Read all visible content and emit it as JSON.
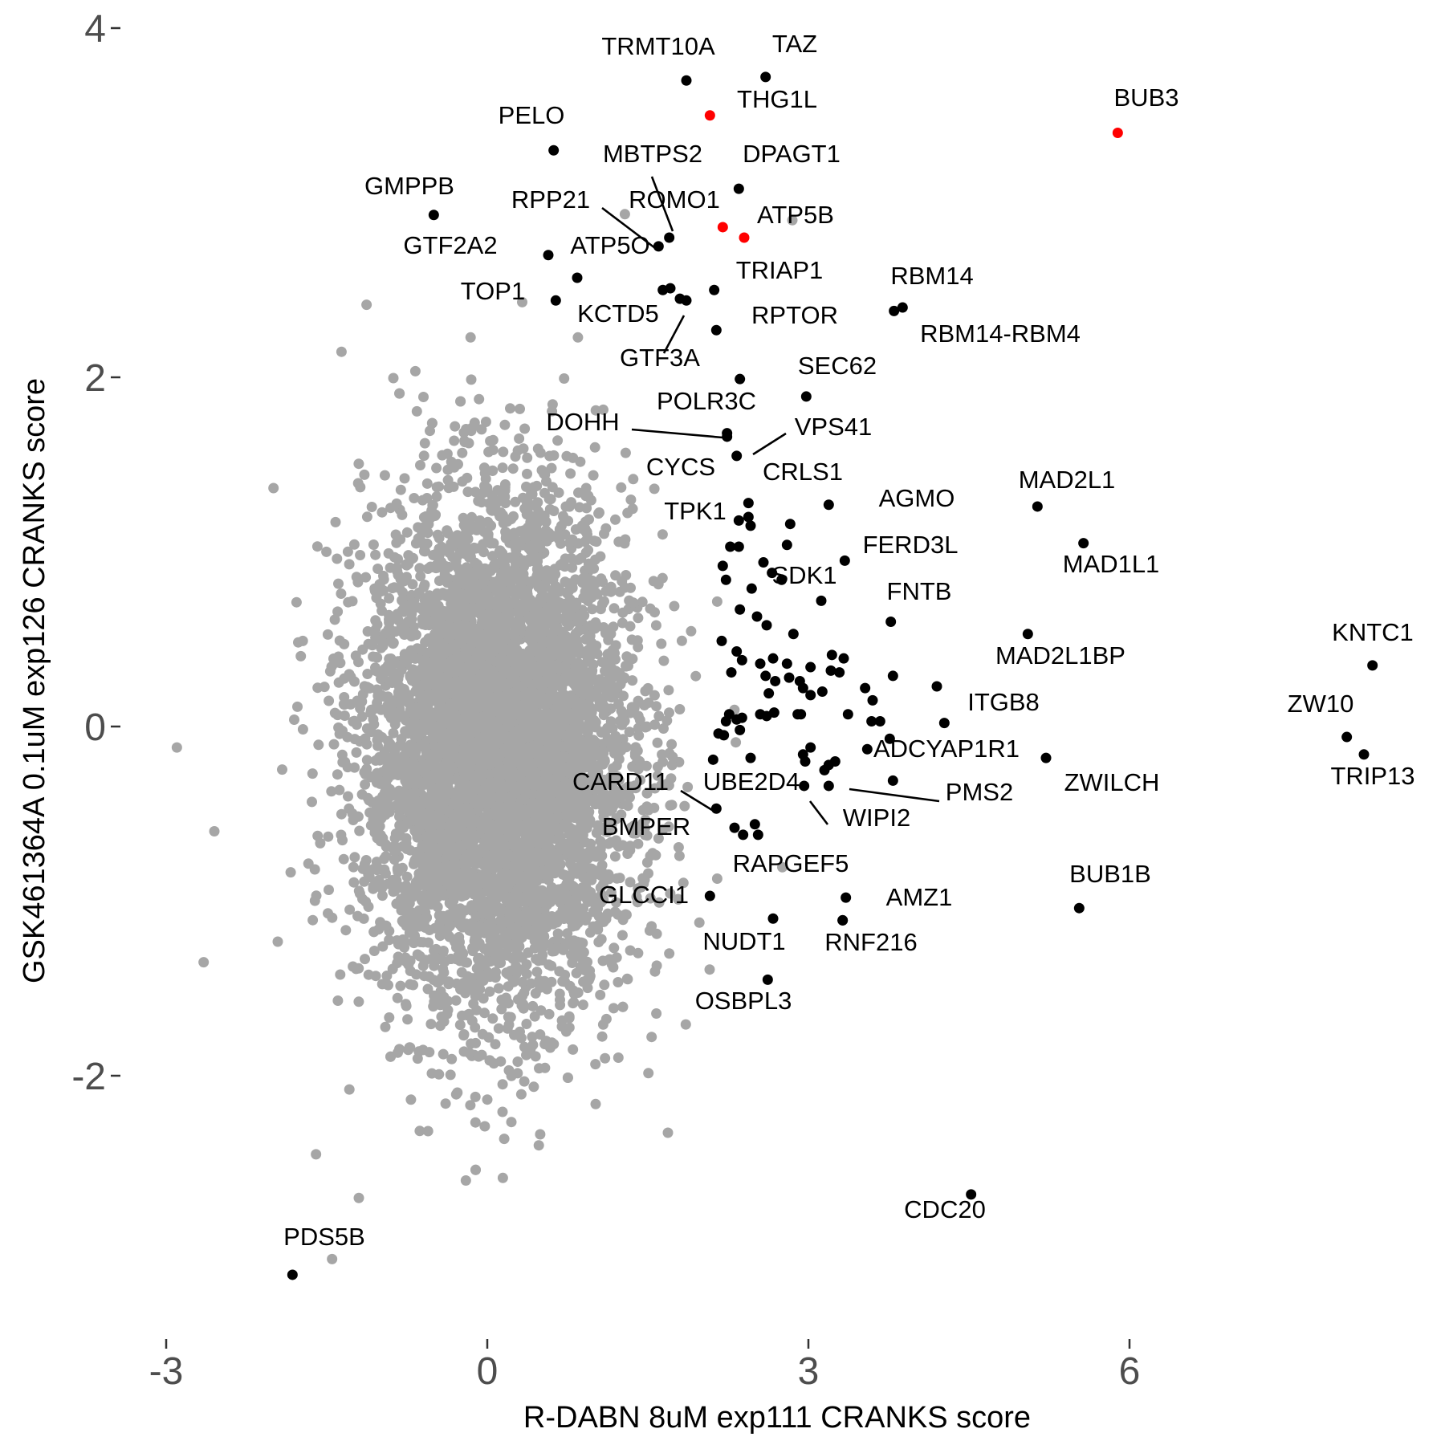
{
  "chart_data": {
    "type": "scatter",
    "xlabel": "R-DABN 8uM exp111 CRANKS score",
    "ylabel": "GSK461364A 0.1uM exp126 CRANKS score",
    "xlim": [
      -3.2,
      8.8
    ],
    "ylim": [
      -3.35,
      4.2
    ],
    "x_ticks": [
      -3,
      0,
      3,
      6
    ],
    "y_ticks": [
      -2,
      0,
      2,
      4
    ],
    "x_tick_labels": [
      "-3",
      "0",
      "3",
      "6"
    ],
    "y_tick_labels": [
      "-2",
      "0",
      "2",
      "4"
    ],
    "grid": false,
    "legend": "none",
    "colors": {
      "background_points": "#a6a6a6",
      "highlight": "#000000",
      "special": "#ff0000"
    },
    "background_cloud": {
      "description_count": 18000,
      "center": [
        0.1,
        -0.15
      ],
      "spread": [
        0.62,
        0.72
      ],
      "extra_points": [
        [
          -2.9,
          -0.12
        ],
        [
          -2.65,
          -1.35
        ],
        [
          -2.55,
          -0.6
        ],
        [
          -1.6,
          -2.45
        ],
        [
          -1.45,
          -3.05
        ],
        [
          -1.2,
          -2.7
        ],
        [
          -0.2,
          -2.6
        ],
        [
          2.85,
          2.9
        ],
        [
          1.7,
          -1.3
        ],
        [
          1.1,
          -1.9
        ],
        [
          0.8,
          -1.85
        ]
      ]
    },
    "highlight_points": [
      {
        "gene": "TRMT10A",
        "x": 1.86,
        "y": 3.7,
        "color": "black"
      },
      {
        "gene": "TAZ",
        "x": 2.6,
        "y": 3.72,
        "color": "black"
      },
      {
        "gene": "THG1L",
        "x": 2.08,
        "y": 3.5,
        "color": "red"
      },
      {
        "gene": "BUB3",
        "x": 5.89,
        "y": 3.4,
        "color": "red"
      },
      {
        "gene": "PELO",
        "x": 0.62,
        "y": 3.3,
        "color": "black"
      },
      {
        "gene": "DPAGT1",
        "x": 2.35,
        "y": 3.08,
        "color": "black"
      },
      {
        "gene": "MBTPS2",
        "x": 1.7,
        "y": 2.8,
        "color": "black"
      },
      {
        "gene": "GMPPB",
        "x": -0.5,
        "y": 2.93,
        "color": "black"
      },
      {
        "gene": "RPP21",
        "x": 1.6,
        "y": 2.75,
        "color": "black"
      },
      {
        "gene": "ROMO1",
        "x": 2.2,
        "y": 2.86,
        "color": "red"
      },
      {
        "gene": "ATP5B",
        "x": 2.4,
        "y": 2.8,
        "color": "red"
      },
      {
        "gene": "GTF2A2",
        "x": 0.57,
        "y": 2.7,
        "color": "black"
      },
      {
        "gene": "ATP5O",
        "x": 0.84,
        "y": 2.57,
        "color": "black"
      },
      {
        "gene": "TRIAP1",
        "x": 2.12,
        "y": 2.5,
        "color": "black"
      },
      {
        "gene": "TOP1",
        "x": 0.64,
        "y": 2.44,
        "color": "black"
      },
      {
        "gene": "RBM14",
        "x": 3.88,
        "y": 2.4,
        "color": "black"
      },
      {
        "gene": "RBM14-RBM4",
        "x": 3.8,
        "y": 2.38,
        "color": "black"
      },
      {
        "gene": "KCTD5",
        "x": 1.64,
        "y": 2.5,
        "color": "black"
      },
      {
        "gene": "GTF3A",
        "x": 1.8,
        "y": 2.45,
        "color": "black"
      },
      {
        "gene": "RPTOR",
        "x": 2.14,
        "y": 2.27,
        "color": "black"
      },
      {
        "gene": "SEC62",
        "x": 2.36,
        "y": 1.99,
        "color": "black"
      },
      {
        "gene": "VPS41",
        "x": 2.98,
        "y": 1.89,
        "color": "black"
      },
      {
        "gene": "POLR3C",
        "x": 2.24,
        "y": 1.68,
        "color": "black"
      },
      {
        "gene": "DOHH",
        "x": 2.24,
        "y": 1.66,
        "color": "black"
      },
      {
        "gene": "CYCS",
        "x": 2.33,
        "y": 1.55,
        "color": "black"
      },
      {
        "gene": "CRLS1",
        "x": 2.44,
        "y": 1.28,
        "color": "black"
      },
      {
        "gene": "AGMO",
        "x": 3.19,
        "y": 1.27,
        "color": "black"
      },
      {
        "gene": "MAD2L1",
        "x": 5.14,
        "y": 1.26,
        "color": "black"
      },
      {
        "gene": "TPK1",
        "x": 2.44,
        "y": 1.2,
        "color": "black"
      },
      {
        "gene": "MAD1L1",
        "x": 5.57,
        "y": 1.05,
        "color": "black"
      },
      {
        "gene": "FERD3L",
        "x": 3.34,
        "y": 0.95,
        "color": "black"
      },
      {
        "gene": "SDK1",
        "x": 2.8,
        "y": 1.04,
        "color": "black"
      },
      {
        "gene": "FNTB",
        "x": 3.77,
        "y": 0.6,
        "color": "black"
      },
      {
        "gene": "MAD2L1BP",
        "x": 5.05,
        "y": 0.53,
        "color": "black"
      },
      {
        "gene": "KNTC1",
        "x": 8.27,
        "y": 0.35,
        "color": "black"
      },
      {
        "gene": "ITGB8",
        "x": 4.2,
        "y": 0.23,
        "color": "black"
      },
      {
        "gene": "ZW10",
        "x": 8.03,
        "y": -0.06,
        "color": "black"
      },
      {
        "gene": "TRIP13",
        "x": 8.19,
        "y": -0.16,
        "color": "black"
      },
      {
        "gene": "ADCYAP1R1",
        "x": 4.27,
        "y": 0.02,
        "color": "black"
      },
      {
        "gene": "ZWILCH",
        "x": 5.22,
        "y": -0.18,
        "color": "black"
      },
      {
        "gene": "PMS2",
        "x": 3.79,
        "y": -0.31,
        "color": "black"
      },
      {
        "gene": "CARD11",
        "x": 2.14,
        "y": -0.47,
        "color": "black"
      },
      {
        "gene": "UBE2D4",
        "x": 2.96,
        "y": -0.34,
        "color": "black"
      },
      {
        "gene": "WIPI2",
        "x": 3.19,
        "y": -0.34,
        "color": "black"
      },
      {
        "gene": "BMPER",
        "x": 2.5,
        "y": -0.56,
        "color": "black"
      },
      {
        "gene": "BUB1B",
        "x": 5.53,
        "y": -1.04,
        "color": "black"
      },
      {
        "gene": "RAPGEF5",
        "x": 3.35,
        "y": -0.98,
        "color": "black"
      },
      {
        "gene": "AMZ1",
        "x": 3.32,
        "y": -1.11,
        "color": "black"
      },
      {
        "gene": "GLCCI1",
        "x": 2.08,
        "y": -0.97,
        "color": "black"
      },
      {
        "gene": "NUDT1",
        "x": 2.67,
        "y": -1.1,
        "color": "black"
      },
      {
        "gene": "RNF216",
        "x": 3.32,
        "y": -1.11,
        "color": "black"
      },
      {
        "gene": "OSBPL3",
        "x": 2.62,
        "y": -1.45,
        "color": "black"
      },
      {
        "gene": "CDC20",
        "x": 4.52,
        "y": -2.68,
        "color": "black"
      },
      {
        "gene": "PDS5B",
        "x": -1.82,
        "y": -3.14,
        "color": "black"
      }
    ],
    "unlabeled_black_points": [
      [
        1.71,
        2.51
      ],
      [
        1.86,
        2.44
      ],
      [
        2.35,
        1.18
      ],
      [
        2.46,
        1.15
      ],
      [
        2.27,
        1.03
      ],
      [
        2.35,
        1.03
      ],
      [
        2.83,
        1.16
      ],
      [
        2.2,
        0.92
      ],
      [
        2.58,
        0.94
      ],
      [
        2.66,
        0.88
      ],
      [
        2.23,
        0.84
      ],
      [
        2.47,
        0.79
      ],
      [
        2.75,
        0.84
      ],
      [
        3.12,
        0.72
      ],
      [
        2.36,
        0.67
      ],
      [
        2.52,
        0.63
      ],
      [
        2.61,
        0.58
      ],
      [
        2.19,
        0.49
      ],
      [
        2.86,
        0.53
      ],
      [
        2.33,
        0.43
      ],
      [
        2.38,
        0.38
      ],
      [
        2.55,
        0.36
      ],
      [
        2.67,
        0.39
      ],
      [
        2.28,
        0.31
      ],
      [
        2.6,
        0.29
      ],
      [
        2.8,
        0.36
      ],
      [
        3.02,
        0.34
      ],
      [
        3.22,
        0.41
      ],
      [
        3.33,
        0.39
      ],
      [
        3.21,
        0.32
      ],
      [
        3.29,
        0.31
      ],
      [
        2.69,
        0.26
      ],
      [
        2.82,
        0.28
      ],
      [
        2.92,
        0.26
      ],
      [
        2.95,
        0.22
      ],
      [
        3.13,
        0.2
      ],
      [
        2.63,
        0.19
      ],
      [
        3.02,
        0.18
      ],
      [
        3.53,
        0.22
      ],
      [
        3.79,
        0.29
      ],
      [
        3.6,
        0.15
      ],
      [
        2.68,
        0.08
      ],
      [
        2.9,
        0.07
      ],
      [
        2.26,
        0.07
      ],
      [
        2.38,
        0.05
      ],
      [
        2.55,
        0.07
      ],
      [
        2.61,
        0.06
      ],
      [
        2.93,
        0.07
      ],
      [
        2.23,
        0.03
      ],
      [
        2.33,
        0.04
      ],
      [
        3.37,
        0.07
      ],
      [
        3.59,
        0.03
      ],
      [
        3.67,
        0.03
      ],
      [
        3.76,
        -0.07
      ],
      [
        2.16,
        -0.04
      ],
      [
        2.21,
        -0.05
      ],
      [
        2.36,
        -0.02
      ],
      [
        3.02,
        -0.12
      ],
      [
        3.55,
        -0.13
      ],
      [
        2.11,
        -0.19
      ],
      [
        2.46,
        -0.18
      ],
      [
        2.95,
        -0.16
      ],
      [
        2.97,
        -0.2
      ],
      [
        3.19,
        -0.22
      ],
      [
        3.15,
        -0.25
      ],
      [
        3.25,
        -0.2
      ],
      [
        2.31,
        -0.58
      ],
      [
        2.39,
        -0.62
      ],
      [
        2.53,
        -0.62
      ]
    ]
  }
}
